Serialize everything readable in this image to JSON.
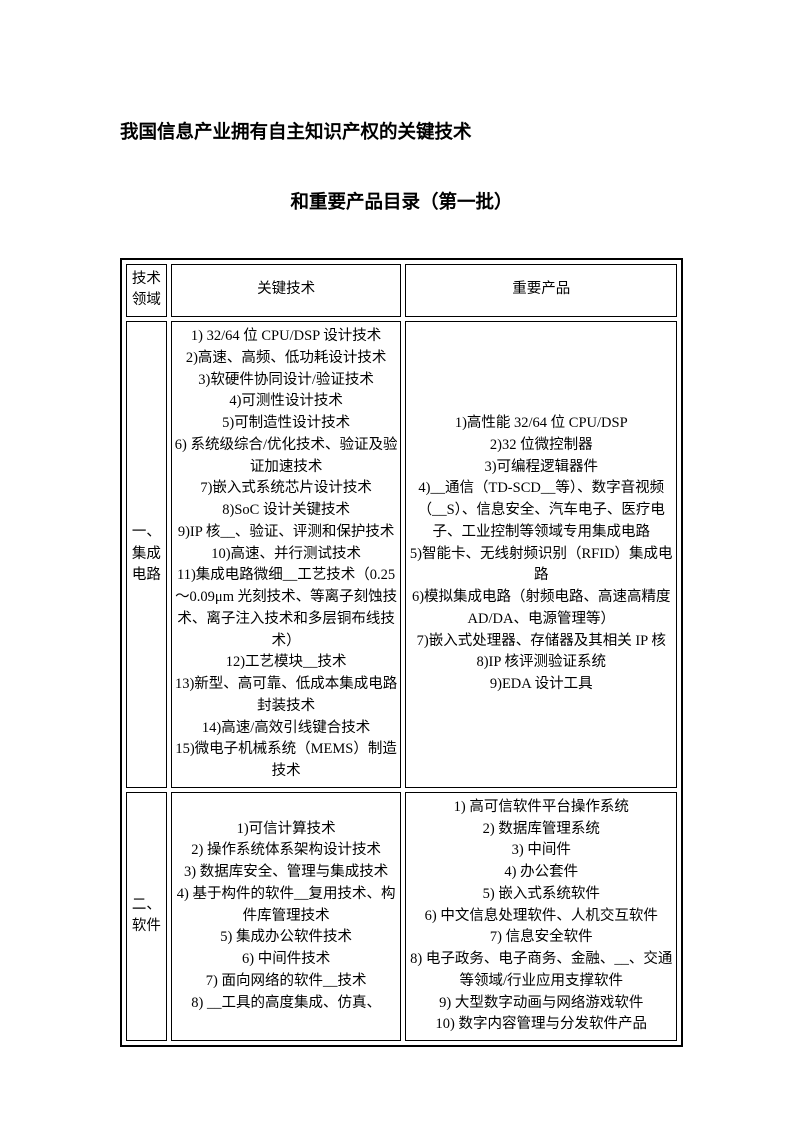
{
  "page": {
    "title_line1": "我国信息产业拥有自主知识产权的关键技术",
    "title_line2": "和重要产品目录（第一批）",
    "background_color": "#ffffff",
    "text_color": "#000000",
    "border_color": "#000000",
    "title_fontsize_pt": 14,
    "body_fontsize_pt": 11
  },
  "table": {
    "header": {
      "col1": "技术领域",
      "col2": "关键技术",
      "col3": "重要产品"
    },
    "rows": [
      {
        "domain": "一、集成电路",
        "tech": [
          "1) 32/64 位 CPU/DSP 设计技术",
          "2)高速、高频、低功耗设计技术",
          "3)软硬件协同设计/验证技术",
          "4)可测性设计技术",
          "5)可制造性设计技术",
          "6) 系统级综合/优化技术、验证及验证加速技术",
          "7)嵌入式系统芯片设计技术",
          "8)SoC 设计关键技术",
          "9)IP 核__、验证、评测和保护技术",
          "10)高速、并行测试技术",
          "11)集成电路微细__工艺技术（0.25～0.09μm 光刻技术、等离子刻蚀技术、离子注入技术和多层铜布线技术）",
          "12)工艺模块__技术",
          "13)新型、高可靠、低成本集成电路封装技术",
          "14)高速/高效引线键合技术",
          "15)微电子机械系统（MEMS）制造技术"
        ],
        "product": [
          "1)高性能 32/64 位 CPU/DSP",
          "2)32 位微控制器",
          "3)可编程逻辑器件",
          "4)__通信（TD-SCD__等）、数字音视频（__S）、信息安全、汽车电子、医疗电子、工业控制等领域专用集成电路",
          "5)智能卡、无线射频识别（RFID）集成电路",
          "6)模拟集成电路（射频电路、高速高精度 AD/DA、电源管理等）",
          "7)嵌入式处理器、存储器及其相关 IP 核",
          "8)IP 核评测验证系统",
          "9)EDA 设计工具"
        ]
      },
      {
        "domain": "二、软件",
        "tech": [
          "1)可信计算技术",
          "2) 操作系统体系架构设计技术",
          "3) 数据库安全、管理与集成技术",
          "4) 基于构件的软件__复用技术、构件库管理技术",
          "5) 集成办公软件技术",
          "6) 中间件技术",
          "7) 面向网络的软件__技术",
          "8) __工具的高度集成、仿真、"
        ],
        "product": [
          "1) 高可信软件平台操作系统",
          "2) 数据库管理系统",
          "3) 中间件",
          "4) 办公套件",
          "5) 嵌入式系统软件",
          "6) 中文信息处理软件、人机交互软件",
          "7) 信息安全软件",
          "8) 电子政务、电子商务、金融、__、交通等领域/行业应用支撑软件",
          "9) 大型数字动画与网络游戏软件",
          "10) 数字内容管理与分发软件产品"
        ]
      }
    ]
  }
}
